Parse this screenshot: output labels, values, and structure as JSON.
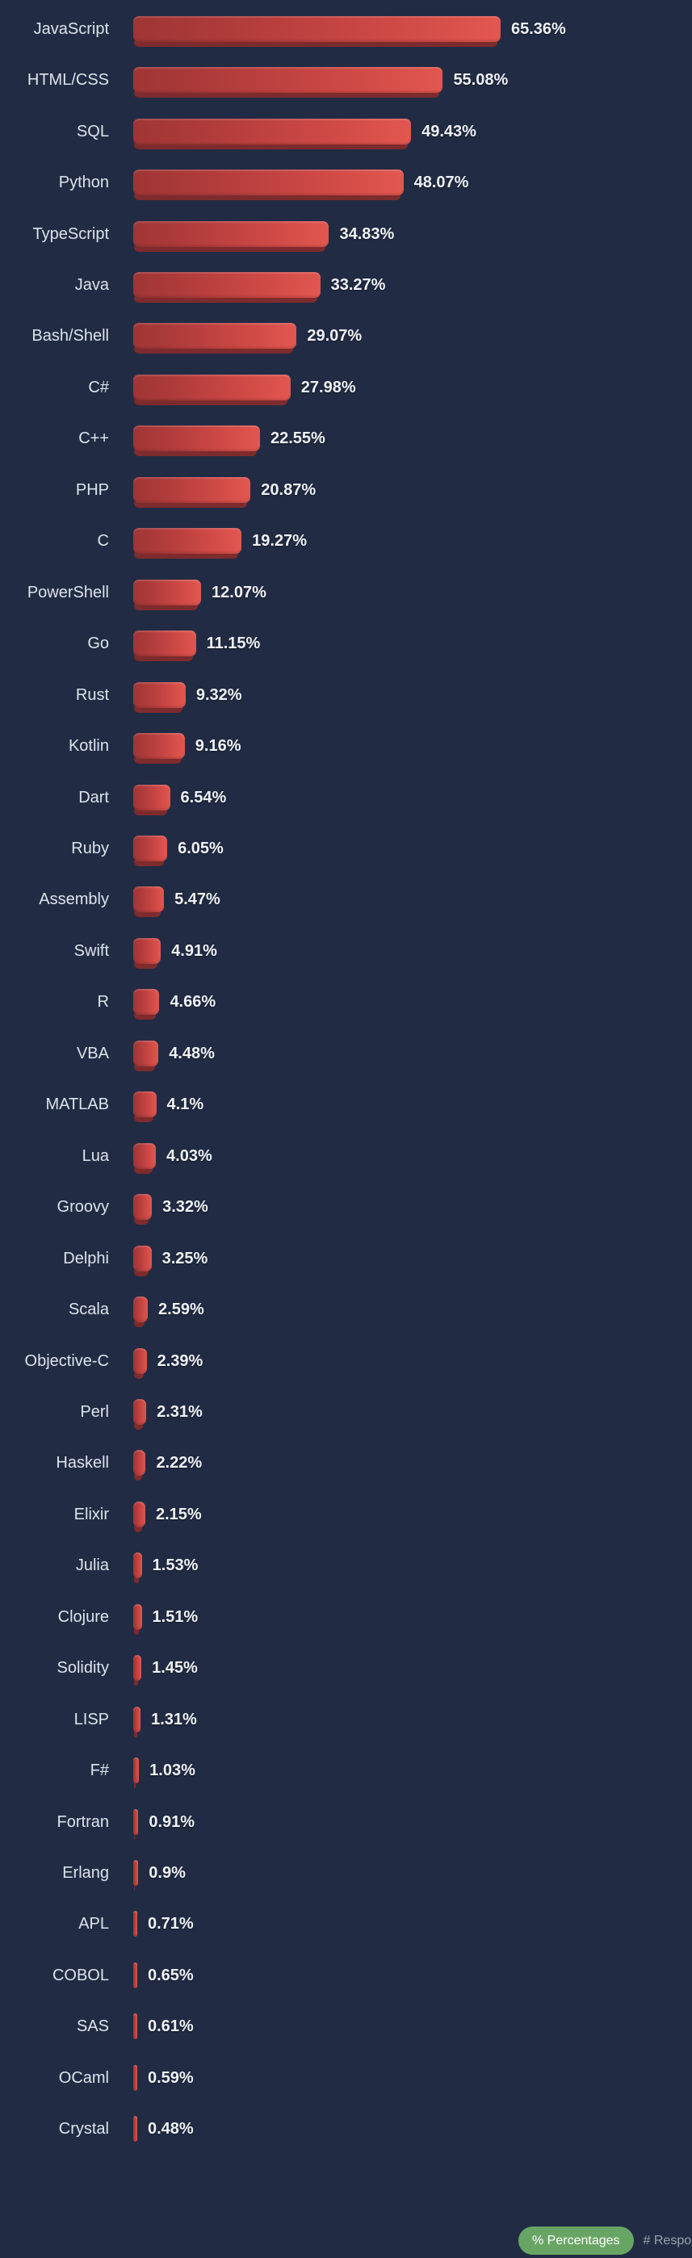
{
  "chart_data": {
    "type": "bar",
    "orientation": "horizontal",
    "title": "",
    "xlabel": "",
    "ylabel": "",
    "unit": "%",
    "xlim": [
      0,
      70
    ],
    "grid": false,
    "legend_position": "bottom-right",
    "categories": [
      "JavaScript",
      "HTML/CSS",
      "SQL",
      "Python",
      "TypeScript",
      "Java",
      "Bash/Shell",
      "C#",
      "C++",
      "PHP",
      "C",
      "PowerShell",
      "Go",
      "Rust",
      "Kotlin",
      "Dart",
      "Ruby",
      "Assembly",
      "Swift",
      "R",
      "VBA",
      "MATLAB",
      "Lua",
      "Groovy",
      "Delphi",
      "Scala",
      "Objective-C",
      "Perl",
      "Haskell",
      "Elixir",
      "Julia",
      "Clojure",
      "Solidity",
      "LISP",
      "F#",
      "Fortran",
      "Erlang",
      "APL",
      "COBOL",
      "SAS",
      "OCaml",
      "Crystal"
    ],
    "values": [
      65.36,
      55.08,
      49.43,
      48.07,
      34.83,
      33.27,
      29.07,
      27.98,
      22.55,
      20.87,
      19.27,
      12.07,
      11.15,
      9.32,
      9.16,
      6.54,
      6.05,
      5.47,
      4.91,
      4.66,
      4.48,
      4.1,
      4.03,
      3.32,
      3.25,
      2.59,
      2.39,
      2.31,
      2.22,
      2.15,
      1.53,
      1.51,
      1.45,
      1.31,
      1.03,
      0.91,
      0.9,
      0.71,
      0.65,
      0.61,
      0.59,
      0.48
    ],
    "value_labels": [
      "65.36%",
      "55.08%",
      "49.43%",
      "48.07%",
      "34.83%",
      "33.27%",
      "29.07%",
      "27.98%",
      "22.55%",
      "20.87%",
      "19.27%",
      "12.07%",
      "11.15%",
      "9.32%",
      "9.16%",
      "6.54%",
      "6.05%",
      "5.47%",
      "4.91%",
      "4.66%",
      "4.48%",
      "4.1%",
      "4.03%",
      "3.32%",
      "3.25%",
      "2.59%",
      "2.39%",
      "2.31%",
      "2.22%",
      "2.15%",
      "1.53%",
      "1.51%",
      "1.45%",
      "1.31%",
      "1.03%",
      "0.91%",
      "0.9%",
      "0.71%",
      "0.65%",
      "0.61%",
      "0.59%",
      "0.48%"
    ]
  },
  "colors": {
    "background": "#212c44",
    "bar_gradient_start": "#9f3535",
    "bar_gradient_end": "#e25750",
    "bar_bevel": "#7e2b2d",
    "label_text": "#dde3ec",
    "value_text": "#eef1f6",
    "toggle_active_bg": "#68a564",
    "toggle_active_text": "#ffffff",
    "toggle_inactive_text": "#99a2b2"
  },
  "footer": {
    "percent_toggle_label": "% Percentages",
    "responses_toggle_label": "# Respo"
  }
}
